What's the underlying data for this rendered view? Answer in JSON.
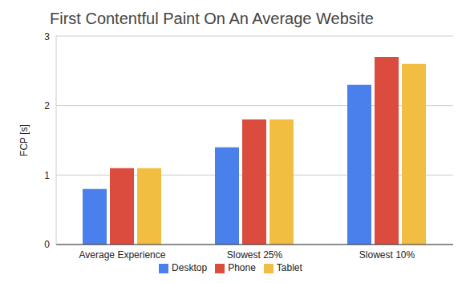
{
  "chart_data": {
    "type": "bar",
    "title": "First Contentful Paint On An Average Website",
    "y_label": "FCP [s]",
    "categories": [
      "Average Experience",
      "Slowest 25%",
      "Slowest 10%"
    ],
    "series": [
      {
        "name": "Desktop",
        "color": "#4a80eb",
        "values": [
          0.8,
          1.4,
          2.3
        ]
      },
      {
        "name": "Phone",
        "color": "#dc4c3e",
        "values": [
          1.1,
          1.8,
          2.7
        ]
      },
      {
        "name": "Tablet",
        "color": "#f2be42",
        "values": [
          1.1,
          1.8,
          2.6
        ]
      }
    ],
    "ylim": [
      0,
      3
    ],
    "yticks": [
      0,
      1,
      2,
      3
    ],
    "grid": true,
    "legend": "bottom"
  }
}
